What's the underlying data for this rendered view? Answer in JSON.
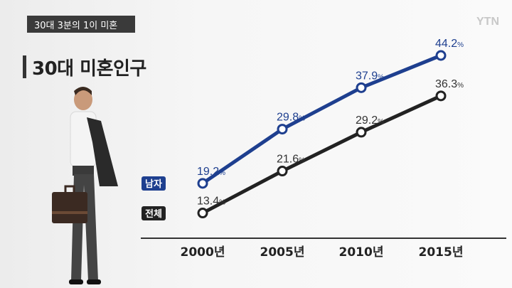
{
  "header": {
    "tag": "30대 3분의 1이 미혼",
    "title": "30대 미혼인구",
    "logo": "YTN"
  },
  "colors": {
    "male": "#1e3f8f",
    "total": "#222222",
    "axis": "#333333"
  },
  "chart_data": {
    "type": "line",
    "title": "30대 미혼인구",
    "categories": [
      "2000년",
      "2005년",
      "2010년",
      "2015년"
    ],
    "unit": "%",
    "series": [
      {
        "name": "남자",
        "values": [
          19.2,
          29.8,
          37.9,
          44.2
        ],
        "color": "#1e3f8f"
      },
      {
        "name": "전체",
        "values": [
          13.4,
          21.6,
          29.2,
          36.3
        ],
        "color": "#222222"
      }
    ],
    "ylim": [
      10,
      46
    ]
  }
}
